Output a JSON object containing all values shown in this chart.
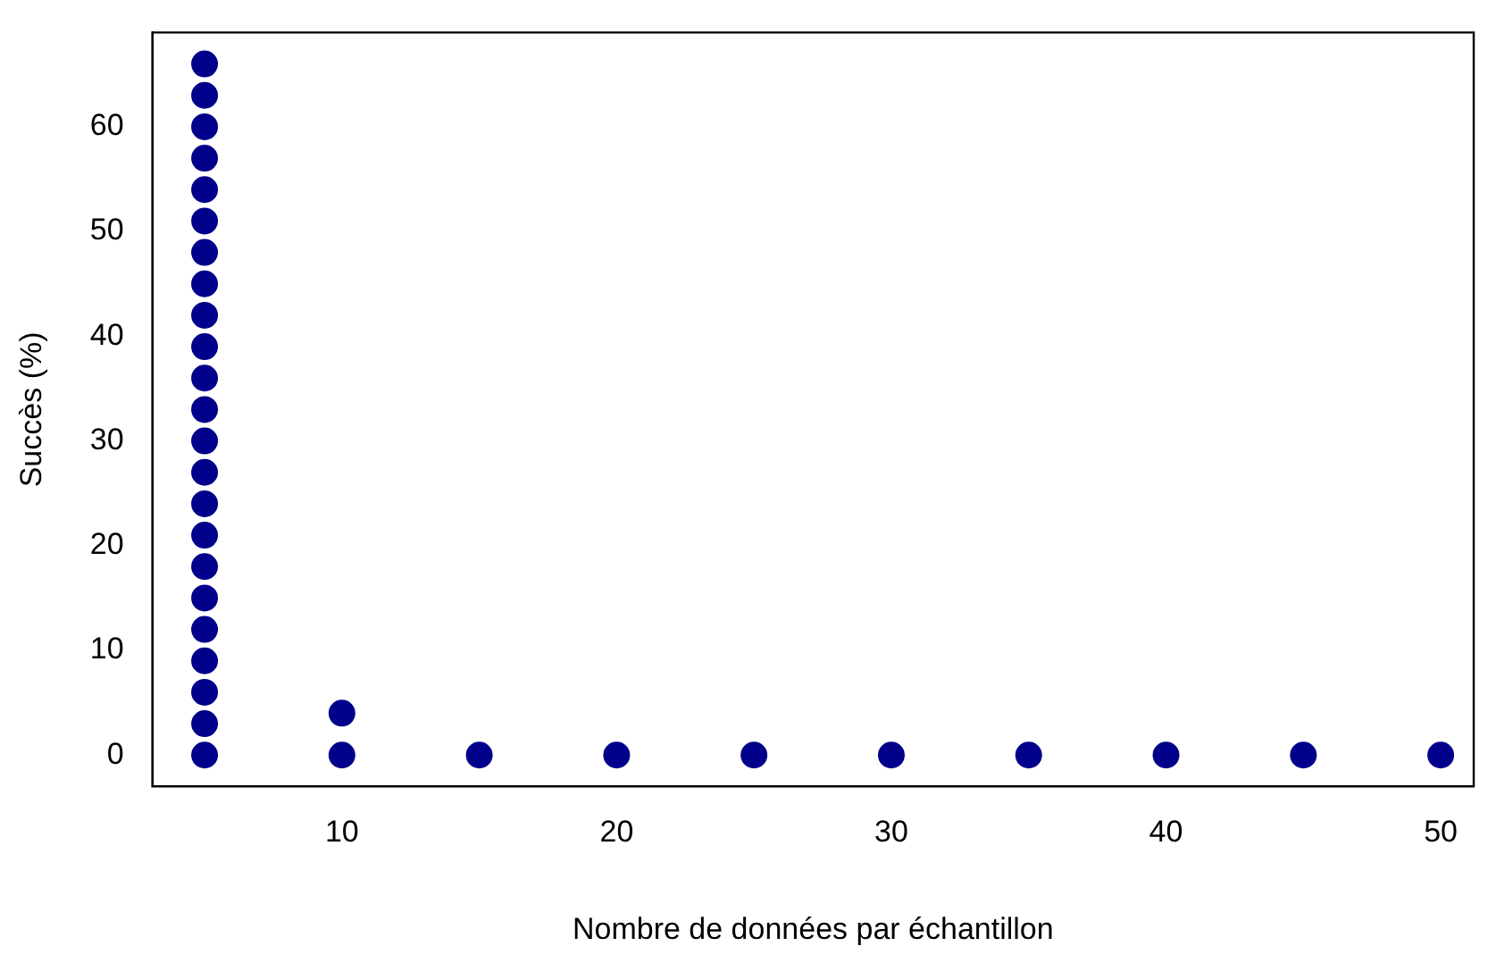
{
  "chart_data": {
    "type": "scatter",
    "xlabel": "Nombre de données par échantillon",
    "ylabel": "Succès (%)",
    "x": [
      5,
      5,
      5,
      5,
      5,
      5,
      5,
      5,
      5,
      5,
      5,
      5,
      5,
      5,
      5,
      5,
      5,
      5,
      5,
      5,
      5,
      5,
      5,
      10,
      10,
      15,
      20,
      25,
      30,
      35,
      40,
      45,
      50
    ],
    "series": [
      {
        "color": "#00008b",
        "values": [
          0,
          3,
          6,
          9,
          12,
          15,
          18,
          21,
          24,
          27,
          30,
          33,
          36,
          39,
          42,
          45,
          48,
          51,
          54,
          57,
          60,
          63,
          66,
          0,
          4,
          0,
          0,
          0,
          0,
          0,
          0,
          0,
          0
        ]
      }
    ],
    "xlim": [
      3.1,
      51.2
    ],
    "xticks": [
      10,
      20,
      30,
      40,
      50
    ],
    "ylim": [
      -3,
      69
    ],
    "yticks": [
      0,
      10,
      20,
      30,
      40,
      50,
      60
    ],
    "grid": false,
    "legend": false,
    "marker": "circle"
  }
}
